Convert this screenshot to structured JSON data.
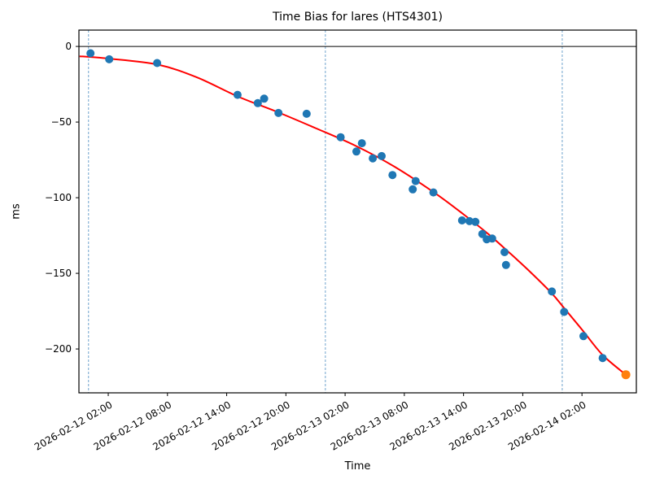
{
  "chart_data": {
    "type": "scatter",
    "title": "Time Bias for lares (HTS4301)",
    "xlabel": "Time",
    "ylabel": "ms",
    "time_epoch": "2026-02-12 00:00",
    "x_unit": "hours since 2026-02-12 00:00",
    "y_unit": "ms",
    "xlim_hours": [
      -0.97,
      55.51
    ],
    "ylim": [
      -229,
      10.8
    ],
    "grid": "off",
    "legend": "none",
    "x_ticks": [
      {
        "hours": 2,
        "label": "2026-02-12 02:00"
      },
      {
        "hours": 8,
        "label": "2026-02-12 08:00"
      },
      {
        "hours": 14,
        "label": "2026-02-12 14:00"
      },
      {
        "hours": 20,
        "label": "2026-02-12 20:00"
      },
      {
        "hours": 26,
        "label": "2026-02-13 02:00"
      },
      {
        "hours": 32,
        "label": "2026-02-13 08:00"
      },
      {
        "hours": 38,
        "label": "2026-02-13 14:00"
      },
      {
        "hours": 44,
        "label": "2026-02-13 20:00"
      },
      {
        "hours": 50,
        "label": "2026-02-14 02:00"
      }
    ],
    "y_ticks": [
      {
        "value": 0,
        "label": "0"
      },
      {
        "value": -50,
        "label": "−50"
      },
      {
        "value": -100,
        "label": "−100"
      },
      {
        "value": -150,
        "label": "−150"
      },
      {
        "value": -200,
        "label": "−200"
      }
    ],
    "zero_line_value": 0,
    "day_boundary_lines_hours": [
      0,
      24,
      48
    ],
    "series": [
      {
        "name": "time-bias-observations",
        "type": "scatter",
        "color": "#1f77b4",
        "marker_radius": 5,
        "points": [
          [
            0.2,
            -4.5
          ],
          [
            2.1,
            -8.5
          ],
          [
            6.95,
            -11
          ],
          [
            15.1,
            -32
          ],
          [
            17.15,
            -37.5
          ],
          [
            17.8,
            -34.5
          ],
          [
            19.25,
            -44
          ],
          [
            22.1,
            -44.5
          ],
          [
            25.55,
            -60
          ],
          [
            27.15,
            -69.5
          ],
          [
            27.7,
            -64
          ],
          [
            28.8,
            -74
          ],
          [
            29.7,
            -72.5
          ],
          [
            30.8,
            -85
          ],
          [
            32.85,
            -94.5
          ],
          [
            33.15,
            -89
          ],
          [
            34.95,
            -96.5
          ],
          [
            37.85,
            -115
          ],
          [
            38.6,
            -115.5
          ],
          [
            39.2,
            -116
          ],
          [
            39.9,
            -124
          ],
          [
            40.35,
            -127.5
          ],
          [
            40.9,
            -127
          ],
          [
            42.15,
            -136
          ],
          [
            42.3,
            -144.5
          ],
          [
            46.95,
            -162
          ],
          [
            48.2,
            -175.5
          ],
          [
            50.15,
            -191.5
          ],
          [
            52.1,
            -206
          ]
        ]
      },
      {
        "name": "latest-observation",
        "type": "scatter",
        "color": "#ff7f0e",
        "marker_radius": 5.5,
        "points": [
          [
            54.45,
            -217
          ]
        ]
      }
    ],
    "fit_curve": {
      "name": "polynomial-fit",
      "type": "line",
      "color": "#ff0000",
      "width": 2,
      "points": [
        [
          -0.9,
          -6.5
        ],
        [
          2,
          -8
        ],
        [
          7,
          -12
        ],
        [
          11,
          -20.5
        ],
        [
          15.1,
          -33
        ],
        [
          19.2,
          -43.5
        ],
        [
          23,
          -54
        ],
        [
          27,
          -65.5
        ],
        [
          31,
          -79.5
        ],
        [
          35,
          -96.5
        ],
        [
          38,
          -111
        ],
        [
          40.5,
          -124
        ],
        [
          42.5,
          -135.5
        ],
        [
          44.5,
          -147.5
        ],
        [
          46.9,
          -163
        ],
        [
          48.2,
          -173
        ],
        [
          50.1,
          -188
        ],
        [
          52.1,
          -204
        ],
        [
          54.45,
          -217
        ]
      ]
    },
    "styles": {
      "background": "#ffffff",
      "axis_color": "#000000",
      "text_color": "#000000",
      "day_line_color": "#6fa3cc",
      "zero_line_color": "#000000"
    }
  }
}
